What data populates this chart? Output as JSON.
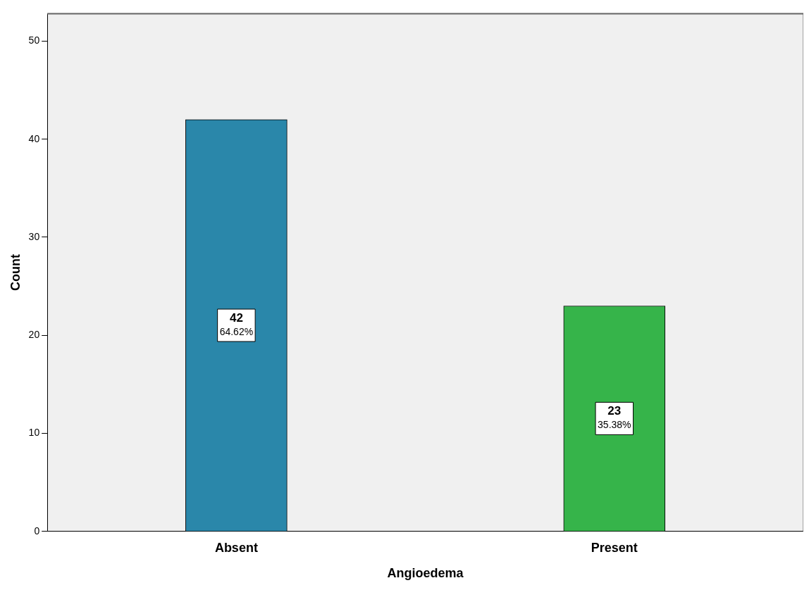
{
  "chart_data": {
    "type": "bar",
    "xlabel": "Angioedema",
    "ylabel": "Count",
    "categories": [
      "Absent",
      "Present"
    ],
    "values": [
      42,
      23
    ],
    "colors": [
      "#2a87aa",
      "#36b44a"
    ],
    "value_labels": [
      "42\n64.62%",
      "23\n35.38%"
    ],
    "ylim": [
      0,
      52.8
    ],
    "yticks": [
      0,
      10,
      20,
      30,
      40,
      50
    ],
    "grid": false,
    "legend": false
  }
}
